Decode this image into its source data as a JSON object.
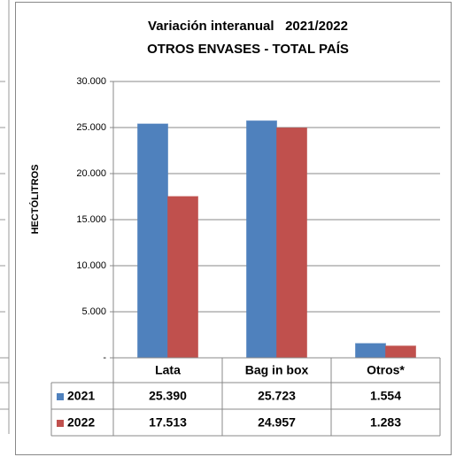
{
  "chart_data": {
    "type": "bar",
    "title": "Variación interanual   2021/2022",
    "subtitle": "OTROS ENVASES - TOTAL PAÍS",
    "y_label": "HECTÓLITROS",
    "categories": [
      "Lata",
      "Bag in box",
      "Otros*"
    ],
    "series": [
      {
        "name": "2021",
        "color": "#4f81bd",
        "values": [
          25390,
          25723,
          1554
        ],
        "value_labels": [
          "25.390",
          "25.723",
          "1.554"
        ]
      },
      {
        "name": "2022",
        "color": "#c0504d",
        "values": [
          17513,
          24957,
          1283
        ],
        "value_labels": [
          "17.513",
          "24.957",
          "1.283"
        ]
      }
    ],
    "ylim": [
      0,
      30000
    ],
    "yticks": [
      {
        "value": 0,
        "label": "-"
      },
      {
        "value": 5000,
        "label": "5.000"
      },
      {
        "value": 10000,
        "label": "10.000"
      },
      {
        "value": 15000,
        "label": "15.000"
      },
      {
        "value": 20000,
        "label": "20.000"
      },
      {
        "value": 25000,
        "label": "25.000"
      },
      {
        "value": 30000,
        "label": "30.000"
      }
    ],
    "grid": true,
    "data_table": true
  }
}
